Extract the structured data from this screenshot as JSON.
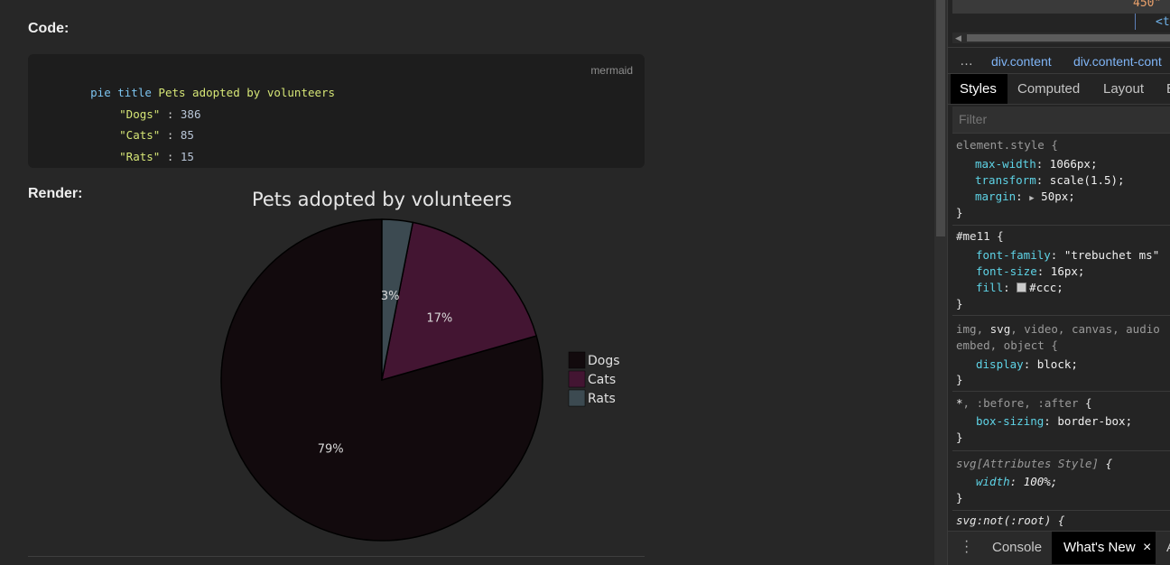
{
  "content": {
    "code_label": "Code:",
    "render_label": "Render:",
    "code_lang": "mermaid",
    "code_lines": [
      {
        "kw": "pie title",
        "text": " Pets adopted by volunteers"
      },
      {
        "str": "\"Dogs\"",
        "sep": " : ",
        "num": "386"
      },
      {
        "str": "\"Cats\"",
        "sep": " : ",
        "num": "85"
      },
      {
        "str": "\"Rats\"",
        "sep": " : ",
        "num": "15"
      }
    ]
  },
  "chart_data": {
    "type": "pie",
    "title": "Pets adopted by volunteers",
    "categories": [
      "Dogs",
      "Cats",
      "Rats"
    ],
    "values": [
      386,
      85,
      15
    ],
    "percent_labels": [
      "79%",
      "17%",
      "3%"
    ],
    "colors": [
      "#120a0d",
      "#431532",
      "#3c4a51"
    ],
    "legend_placement": "right"
  },
  "devtools": {
    "dom_line_1": "450\"",
    "dom_line_2": "<t",
    "breadcrumb_more": "…",
    "breadcrumbs": [
      "div.content",
      "div.content-cont"
    ],
    "tabs": [
      "Styles",
      "Computed",
      "Layout",
      "E"
    ],
    "filter_placeholder": "Filter",
    "rules": {
      "element_style": {
        "selector": "element.style {",
        "props": [
          {
            "name": "max-width",
            "value": "1066px;"
          },
          {
            "name": "transform",
            "value": "scale(1.5);"
          },
          {
            "name": "margin",
            "value": "50px;"
          }
        ]
      },
      "me11": {
        "selector": "#me11 {",
        "props": [
          {
            "name": "font-family",
            "value": "\"trebuchet ms\""
          },
          {
            "name": "font-size",
            "value": "16px;"
          },
          {
            "name": "fill",
            "value": "#ccc;"
          }
        ]
      },
      "display_rule": {
        "selector_line_1_dim_a": "img, ",
        "selector_line_1_bright": "svg",
        "selector_line_1_dim_b": ", video, canvas, audio",
        "selector_line_2": "embed, object {",
        "props": [
          {
            "name": "display",
            "value": "block;"
          }
        ]
      },
      "box_rule": {
        "selector_bright": "*",
        "selector_dim": ", :before, :after",
        "selector_end": " {",
        "props": [
          {
            "name": "box-sizing",
            "value": "border-box;"
          }
        ]
      },
      "svg_attr": {
        "selector_a": "svg",
        "selector_b": "[Attributes Style]",
        "selector_end": " {",
        "props": [
          {
            "name": "width",
            "value": "100%;"
          }
        ]
      },
      "svg_not_root": {
        "selector": "svg:not(:root) {"
      }
    },
    "drawer": {
      "console": "Console",
      "whats_new": "What's New",
      "close": "×",
      "more": "A"
    }
  }
}
